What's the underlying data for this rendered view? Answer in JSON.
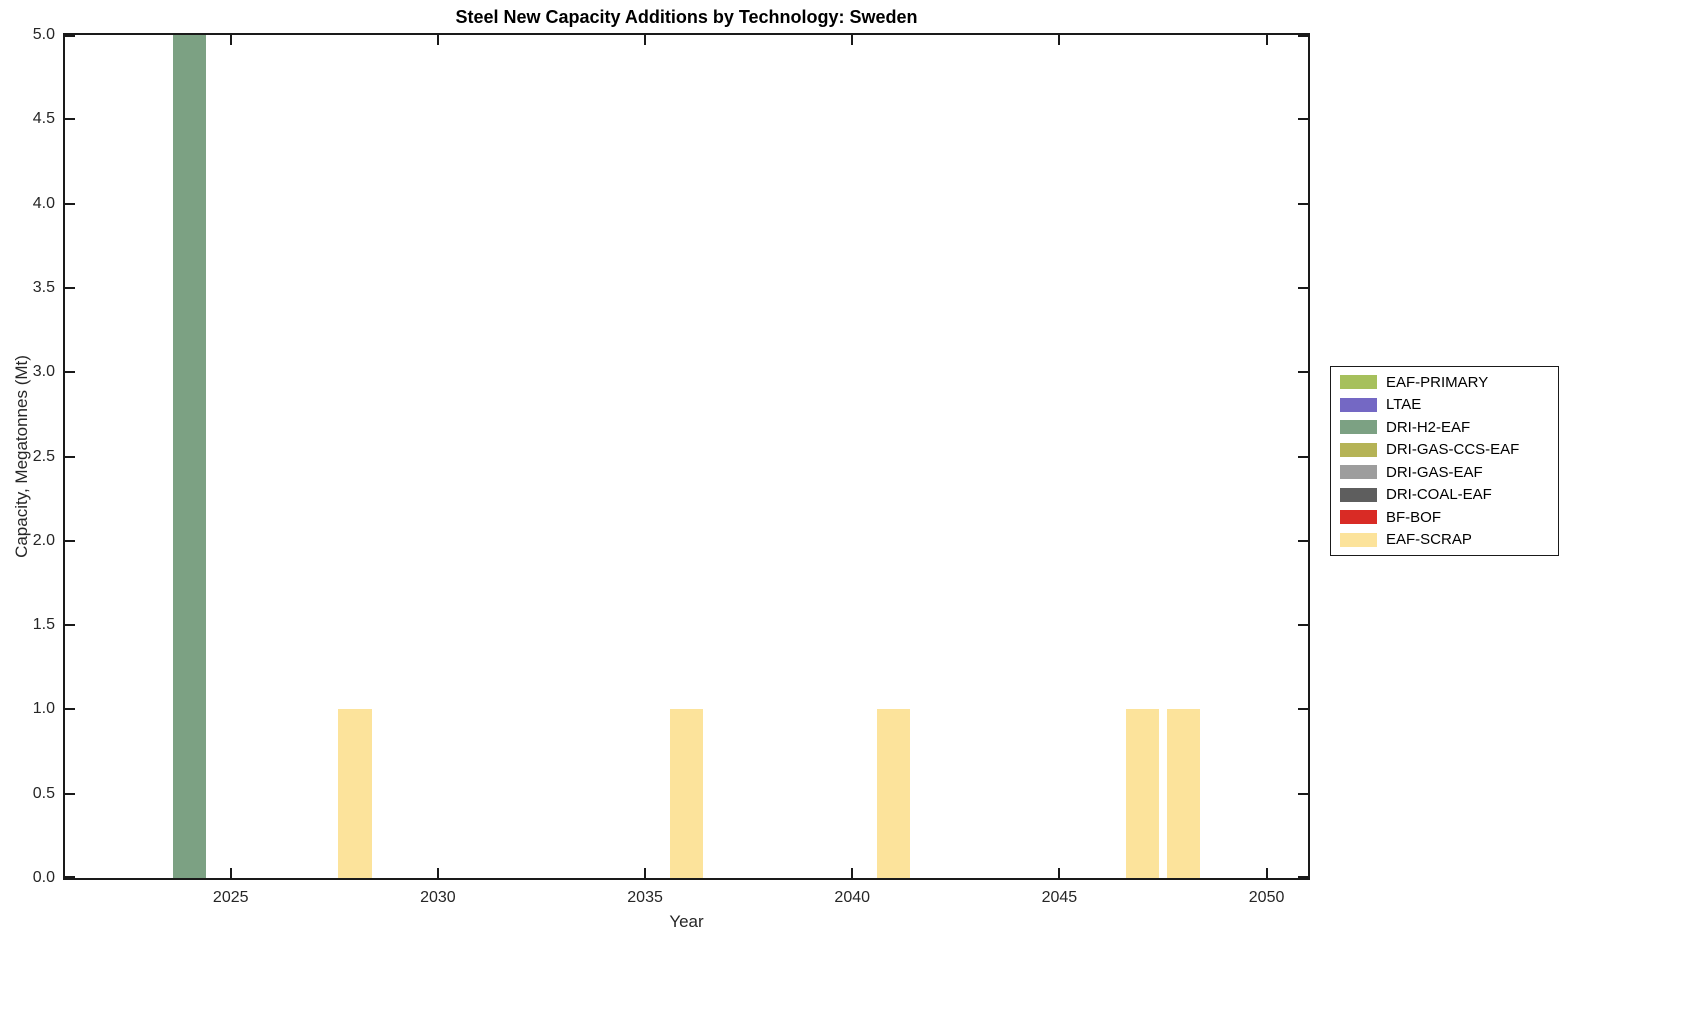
{
  "chart_data": {
    "type": "bar",
    "title": "Steel New Capacity Additions by Technology: Sweden",
    "xlabel": "Year",
    "ylabel": "Capacity, Megatonnes (Mt)",
    "xlim": [
      2021,
      2051
    ],
    "ylim": [
      0,
      5
    ],
    "grid": false,
    "legend_position": "right-outside",
    "bar_width_years": 0.8,
    "xticks": [
      2025,
      2030,
      2035,
      2040,
      2045,
      2050
    ],
    "xtick_labels": [
      "2025",
      "2030",
      "2035",
      "2040",
      "2045",
      "2050"
    ],
    "yticks": [
      0,
      0.5,
      1,
      1.5,
      2,
      2.5,
      3,
      3.5,
      4,
      4.5,
      5
    ],
    "ytick_labels": [
      "0.0",
      "0.5",
      "1.0",
      "1.5",
      "2.0",
      "2.5",
      "3.0",
      "3.5",
      "4.0",
      "4.5",
      "5.0"
    ],
    "legend": [
      {
        "label": "EAF-PRIMARY",
        "color": "#a6c05c"
      },
      {
        "label": "LTAE",
        "color": "#7468c4"
      },
      {
        "label": "DRI-H2-EAF",
        "color": "#7ca183"
      },
      {
        "label": "DRI-GAS-CCS-EAF",
        "color": "#b5b356"
      },
      {
        "label": "DRI-GAS-EAF",
        "color": "#9d9d9d"
      },
      {
        "label": "DRI-COAL-EAF",
        "color": "#5e5e5e"
      },
      {
        "label": "BF-BOF",
        "color": "#d92b25"
      },
      {
        "label": "EAF-SCRAP",
        "color": "#fce39b"
      }
    ],
    "series": [
      {
        "name": "DRI-H2-EAF",
        "color": "#7ca183",
        "points": [
          {
            "x": 2024,
            "y": 5.0
          }
        ]
      },
      {
        "name": "EAF-SCRAP",
        "color": "#fce39b",
        "points": [
          {
            "x": 2028,
            "y": 1.0
          },
          {
            "x": 2036,
            "y": 1.0
          },
          {
            "x": 2041,
            "y": 1.0
          },
          {
            "x": 2047,
            "y": 1.0
          },
          {
            "x": 2048,
            "y": 1.0
          }
        ]
      }
    ]
  }
}
